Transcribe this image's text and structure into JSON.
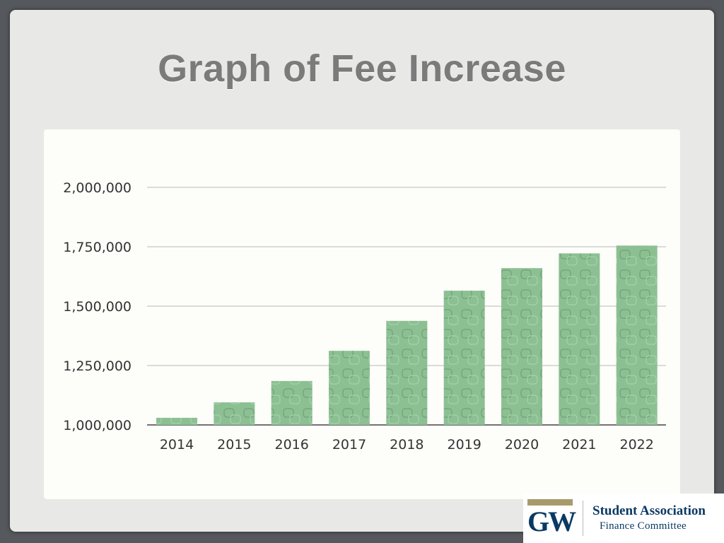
{
  "slide": {
    "title": "Graph of Fee Increase"
  },
  "logo": {
    "mark": "GW",
    "org_name": "Student Association",
    "subtitle": "Finance Committee"
  },
  "colors": {
    "bar_fill": "#8cc093",
    "bar_pattern": "#6fa378",
    "gridline": "#b9b9b9",
    "axis": "#444444",
    "text": "#333333"
  },
  "chart_data": {
    "type": "bar",
    "categories": [
      "2014",
      "2015",
      "2016",
      "2017",
      "2018",
      "2019",
      "2020",
      "2021",
      "2022"
    ],
    "values": [
      1030000,
      1095000,
      1185000,
      1312000,
      1438000,
      1565000,
      1660000,
      1722000,
      1755000
    ],
    "ylim": [
      1000000,
      2000000
    ],
    "yticks": [
      1000000,
      1250000,
      1500000,
      1750000,
      2000000
    ],
    "ytick_labels": [
      "1,000,000",
      "1,250,000",
      "1,500,000",
      "1,750,000",
      "2,000,000"
    ],
    "grid": true,
    "legend": "none"
  }
}
